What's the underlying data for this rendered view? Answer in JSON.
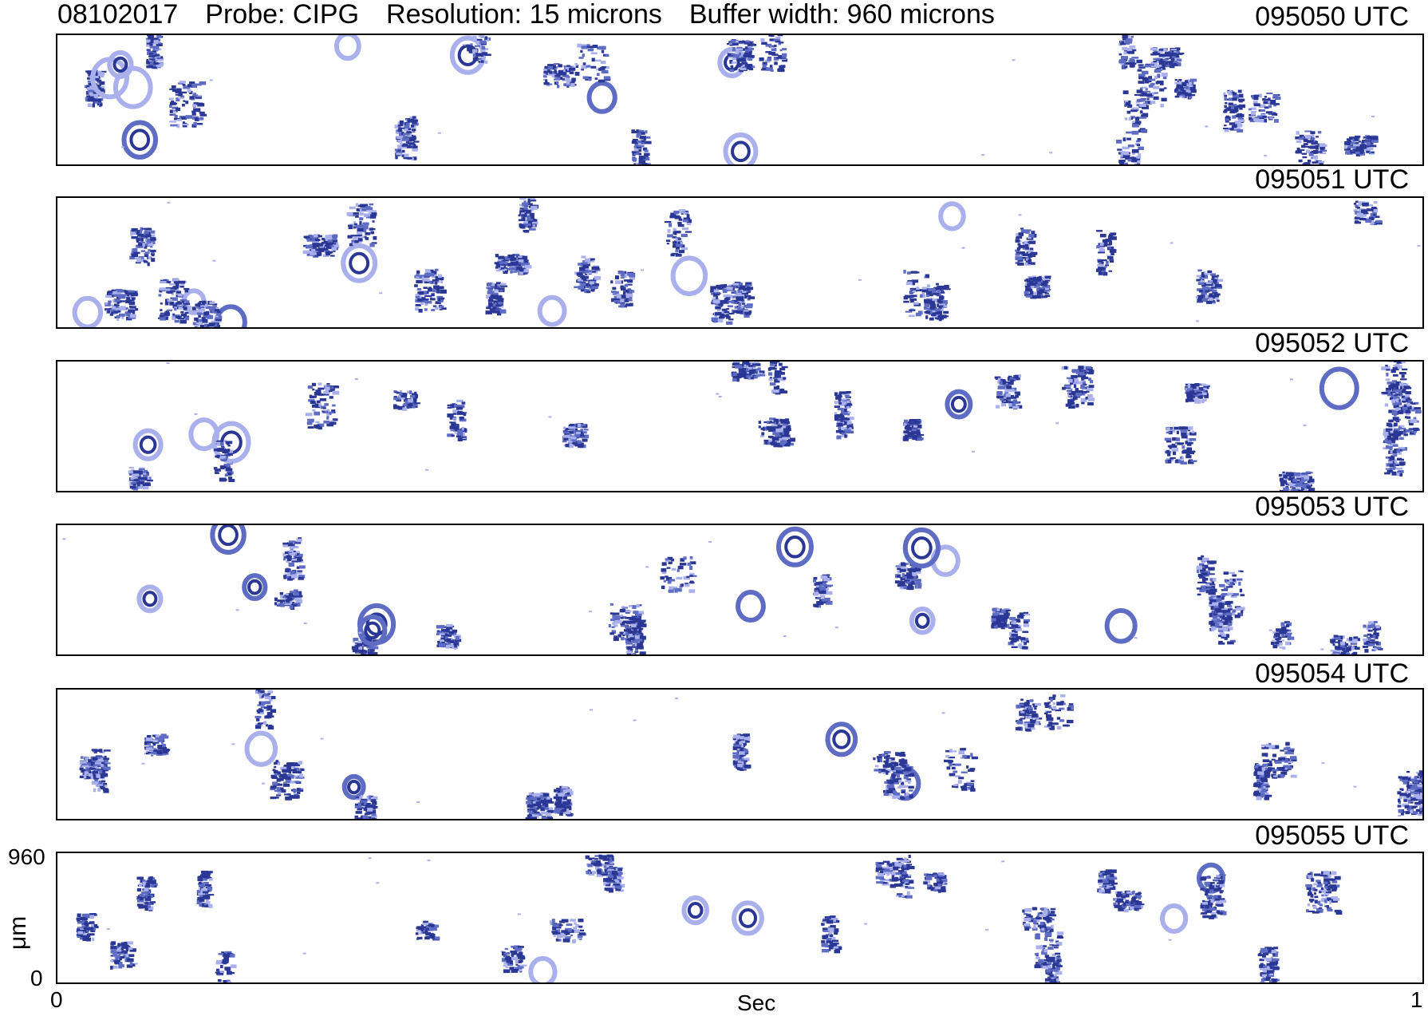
{
  "header": {
    "date": "08102017",
    "probe": "Probe: CIPG",
    "resolution": "Resolution: 15 microns",
    "buffer": "Buffer width: 960 microns"
  },
  "strips": [
    {
      "time": "095050 UTC"
    },
    {
      "time": "095051 UTC"
    },
    {
      "time": "095052 UTC"
    },
    {
      "time": "095053 UTC"
    },
    {
      "time": "095054 UTC"
    },
    {
      "time": "095055 UTC"
    }
  ],
  "axes": {
    "y_top": "960",
    "y_bottom": "0",
    "y_title": "μm",
    "x_left": "0",
    "x_right": "1",
    "x_title": "Sec"
  },
  "colors": {
    "dark": "#2b3794",
    "light": "#a9b0ec",
    "medium": "#5f6cc4"
  }
}
